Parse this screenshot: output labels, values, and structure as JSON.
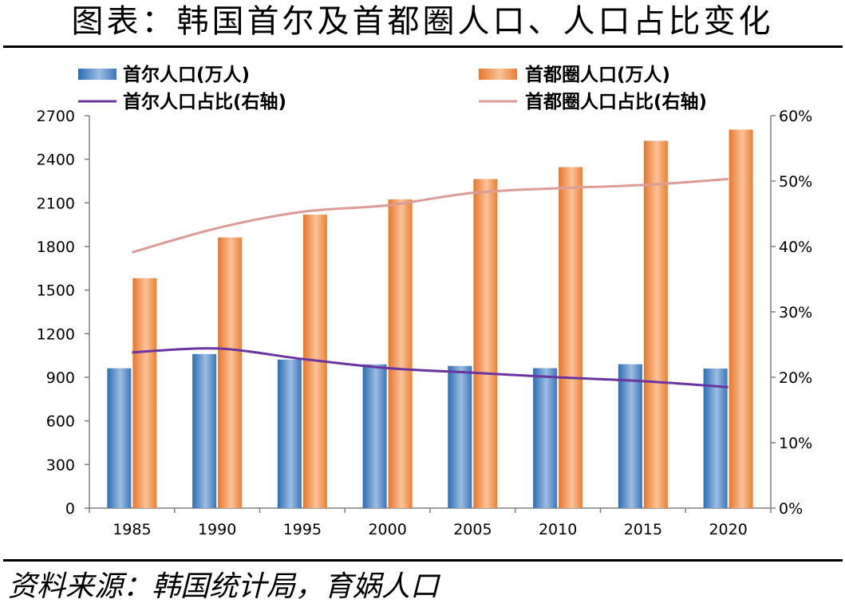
{
  "title": "图表：韩国首尔及首都圈人口、人口占比变化",
  "source": "资料来源：韩国统计局，育娲人口",
  "colors": {
    "seoul_bar": "#3f7fc0",
    "capital_bar": "#f0863a",
    "seoul_share_line": "#6b35a0",
    "capital_share_line": "#dc9c98"
  },
  "chart_data": {
    "type": "bar",
    "categories": [
      "1985",
      "1990",
      "1995",
      "2000",
      "2005",
      "2010",
      "2015",
      "2020"
    ],
    "series": [
      {
        "name": "首尔人口(万人)",
        "type": "bar",
        "axis": "left",
        "values": [
          962,
          1060,
          1022,
          989,
          978,
          963,
          990,
          960
        ]
      },
      {
        "name": "首都圈人口(万人)",
        "type": "bar",
        "axis": "left",
        "values": [
          1582,
          1862,
          2019,
          2124,
          2264,
          2346,
          2527,
          2604
        ]
      },
      {
        "name": "首尔人口占比(右轴)",
        "type": "line",
        "axis": "right",
        "values": [
          0.238,
          0.244,
          0.228,
          0.214,
          0.207,
          0.2,
          0.194,
          0.185
        ]
      },
      {
        "name": "首都圈人口占比(右轴)",
        "type": "line",
        "axis": "right",
        "values": [
          0.391,
          0.428,
          0.453,
          0.463,
          0.482,
          0.489,
          0.494,
          0.503
        ]
      }
    ],
    "y_left": {
      "min": 0,
      "max": 2700,
      "ticks": [
        "0",
        "300",
        "600",
        "900",
        "1200",
        "1500",
        "1800",
        "2100",
        "2400",
        "2700"
      ]
    },
    "y_right": {
      "min": 0,
      "max": 0.6,
      "ticks": [
        "0%",
        "10%",
        "20%",
        "30%",
        "40%",
        "50%",
        "60%"
      ]
    },
    "legend_position": "top",
    "grid": false
  }
}
